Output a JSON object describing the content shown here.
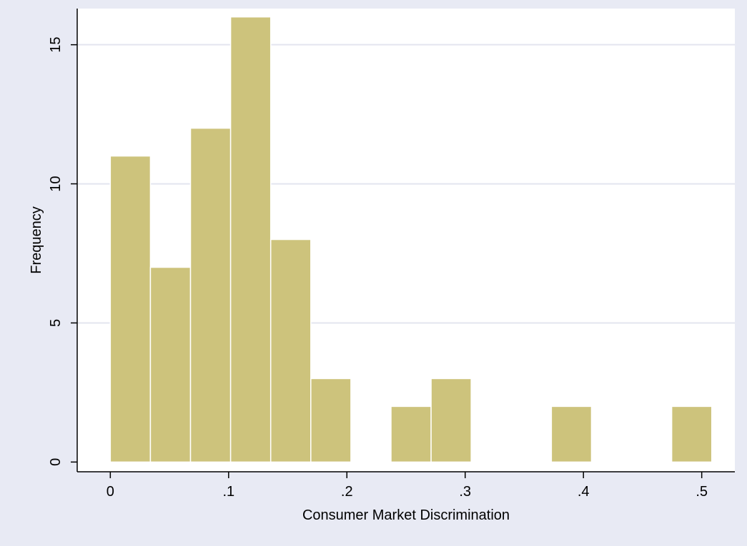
{
  "chart_data": {
    "type": "bar",
    "xlabel": "Consumer Market Discrimination",
    "ylabel": "Frequency",
    "xlim": [
      -0.028,
      0.528
    ],
    "ylim": [
      -0.35,
      16.3
    ],
    "xticks": [
      {
        "value": 0,
        "label": "0"
      },
      {
        "value": 0.1,
        "label": ".1"
      },
      {
        "value": 0.2,
        "label": ".2"
      },
      {
        "value": 0.3,
        "label": ".3"
      },
      {
        "value": 0.4,
        "label": ".4"
      },
      {
        "value": 0.5,
        "label": ".5"
      }
    ],
    "yticks": [
      {
        "value": 0,
        "label": "0"
      },
      {
        "value": 5,
        "label": "5"
      },
      {
        "value": 10,
        "label": "10"
      },
      {
        "value": 15,
        "label": "15"
      }
    ],
    "bin_width": 0.0339,
    "bins": [
      {
        "start": 0.0,
        "frequency": 11
      },
      {
        "start": 0.0339,
        "frequency": 7
      },
      {
        "start": 0.0678,
        "frequency": 12
      },
      {
        "start": 0.1017,
        "frequency": 16
      },
      {
        "start": 0.1356,
        "frequency": 8
      },
      {
        "start": 0.1695,
        "frequency": 3
      },
      {
        "start": 0.2373,
        "frequency": 2
      },
      {
        "start": 0.2712,
        "frequency": 3
      },
      {
        "start": 0.3729,
        "frequency": 2
      },
      {
        "start": 0.4746,
        "frequency": 2
      }
    ],
    "grid": "horizontal",
    "colors": {
      "outer_background": "#e8eaf4",
      "plot_background": "#ffffff",
      "bar_fill": "#cdc37c",
      "bar_edge": "#ffffff",
      "axis": "#000000",
      "grid": "#e3e5ef"
    }
  }
}
